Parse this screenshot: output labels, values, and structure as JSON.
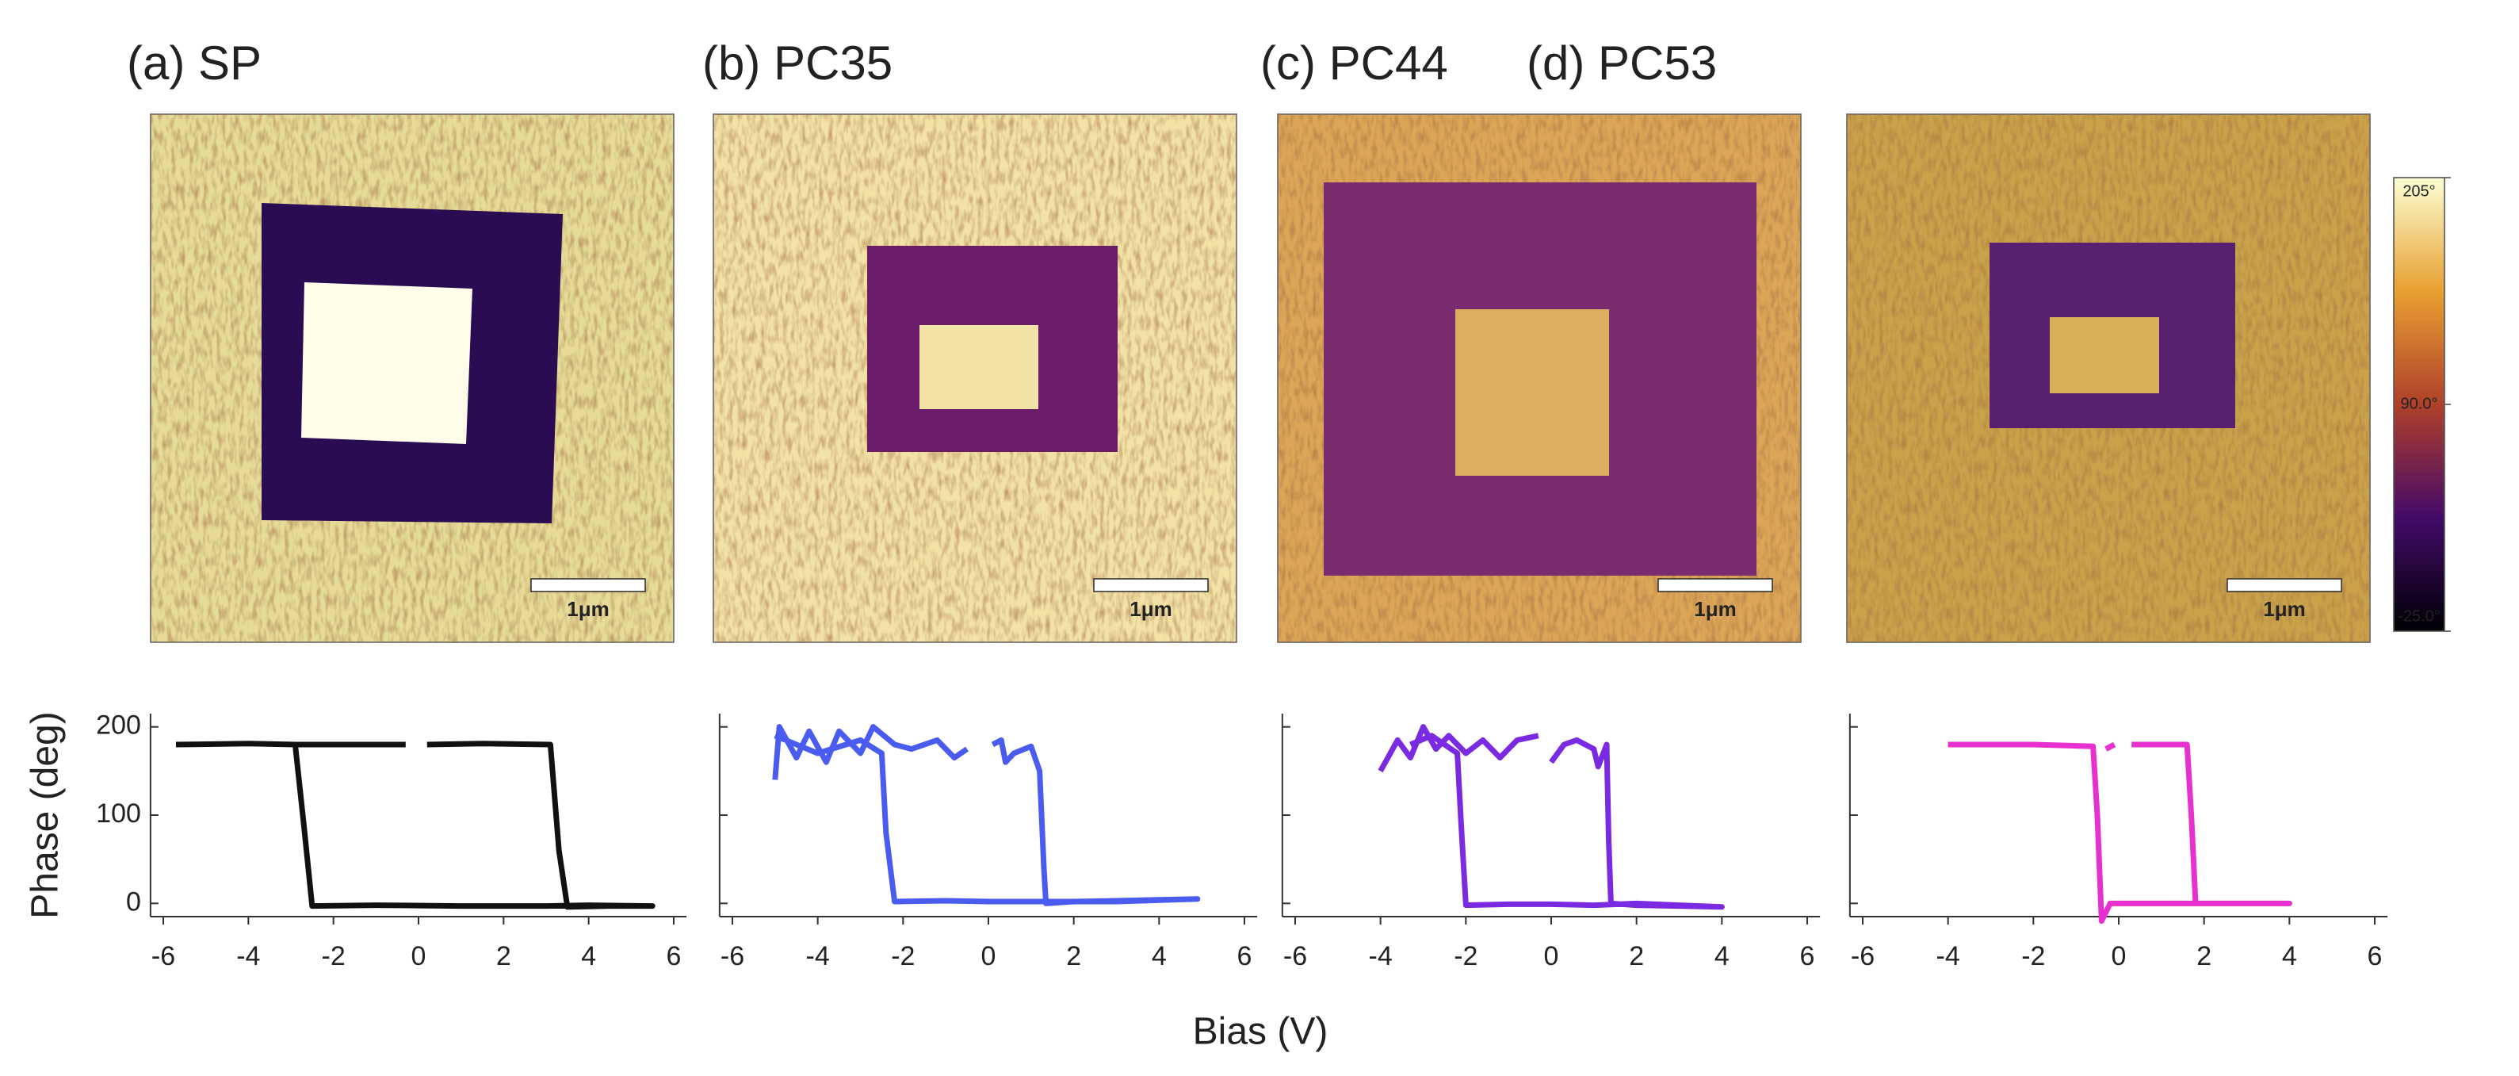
{
  "panels": [
    {
      "title": "(a) SP",
      "scale_bar": "1μm"
    },
    {
      "title": "(b) PC35",
      "scale_bar": "1μm"
    },
    {
      "title": "(c) PC44",
      "scale_bar": "1μm"
    },
    {
      "title": "(d) PC53",
      "scale_bar": "1μm"
    }
  ],
  "colorbar": {
    "lim": [
      -25,
      205
    ],
    "ticks": [
      {
        "value": 205,
        "label": "205°"
      },
      {
        "value": 90,
        "label": "90.0°"
      },
      {
        "value": -25,
        "label": "-25.0°"
      }
    ]
  },
  "figure": {
    "xlabel": "Bias (V)"
  },
  "chart_data": [
    {
      "type": "line",
      "color": "#111111",
      "ylabel": "Phase (deg)",
      "show_ytick_labels": true,
      "xlim": [
        -6.3,
        6.3
      ],
      "ylim": [
        -15,
        215
      ],
      "xticks": [
        -6,
        -4,
        -2,
        0,
        2,
        4,
        6
      ],
      "yticks": [
        0,
        100,
        200
      ],
      "x": [
        -5.7,
        -4,
        -2.9,
        -1,
        -0.3,
        0,
        0.2,
        1.5,
        3.1,
        3.3,
        3.5,
        4.5,
        5.5,
        4,
        3,
        1,
        -1,
        -2.5,
        -2.7,
        -2.9
      ],
      "values": [
        180,
        181,
        180,
        180,
        180,
        null,
        180,
        181,
        180,
        60,
        -4,
        -3,
        -3,
        -2,
        -3,
        -3,
        -2,
        -3,
        90,
        180
      ]
    },
    {
      "type": "line",
      "color": "#4a5cf0",
      "show_ytick_labels": false,
      "xlim": [
        -6.3,
        6.3
      ],
      "ylim": [
        -15,
        215
      ],
      "xticks": [
        -6,
        -4,
        -2,
        0,
        2,
        4,
        6
      ],
      "yticks": [
        0,
        100,
        200
      ],
      "x": [
        -5,
        -4.9,
        -4.5,
        -4.2,
        -3.8,
        -3.5,
        -3,
        -2.7,
        -2.2,
        -1.8,
        -1.2,
        -0.8,
        -0.5,
        0,
        0.1,
        0.3,
        0.4,
        0.6,
        1,
        1.2,
        1.3,
        1.35,
        2,
        3,
        4,
        4.9,
        3,
        1,
        0,
        -1,
        -2.2,
        -2.4,
        -2.5,
        -3,
        -4,
        -5
      ],
      "values": [
        140,
        200,
        165,
        195,
        160,
        195,
        170,
        200,
        180,
        175,
        185,
        165,
        175,
        null,
        180,
        185,
        160,
        170,
        178,
        150,
        40,
        0,
        2,
        3,
        4,
        5,
        2,
        2,
        2,
        3,
        2,
        80,
        170,
        185,
        170,
        190
      ]
    },
    {
      "type": "line",
      "color": "#7a2ae0",
      "show_ytick_labels": false,
      "xlim": [
        -6.3,
        6.3
      ],
      "ylim": [
        -15,
        215
      ],
      "xticks": [
        -6,
        -4,
        -2,
        0,
        2,
        4,
        6
      ],
      "yticks": [
        0,
        100,
        200
      ],
      "x": [
        -4,
        -3.6,
        -3.3,
        -3,
        -2.7,
        -2.4,
        -2,
        -1.6,
        -1.2,
        -0.8,
        -0.3,
        -0.1,
        0,
        0.3,
        0.6,
        1,
        1.1,
        1.3,
        1.35,
        1.4,
        2,
        3,
        4,
        3,
        2,
        1,
        0,
        -1,
        -2,
        -2.1,
        -2.2,
        -2.8,
        -3.3
      ],
      "values": [
        150,
        185,
        165,
        200,
        175,
        190,
        170,
        185,
        165,
        185,
        190,
        null,
        160,
        180,
        185,
        175,
        155,
        180,
        70,
        0,
        -2,
        -3,
        -4,
        -2,
        0,
        -2,
        -1,
        -1,
        -2,
        80,
        170,
        190,
        180
      ]
    },
    {
      "type": "line",
      "color": "#e830d0",
      "show_ytick_labels": false,
      "xlim": [
        -6.3,
        6.3
      ],
      "ylim": [
        -15,
        215
      ],
      "xticks": [
        -6,
        -4,
        -2,
        0,
        2,
        4,
        6
      ],
      "yticks": [
        0,
        100,
        200
      ],
      "x": [
        -4,
        -2,
        -0.6,
        -0.5,
        -0.4,
        -0.2,
        1,
        2,
        3,
        4,
        2.5,
        1.8,
        1.7,
        1.6,
        1,
        0.3,
        0,
        -0.1,
        -0.3
      ],
      "values": [
        180,
        180,
        178,
        100,
        -20,
        0,
        0,
        0,
        0,
        0,
        0,
        0,
        100,
        180,
        180,
        180,
        null,
        180,
        175
      ]
    }
  ]
}
